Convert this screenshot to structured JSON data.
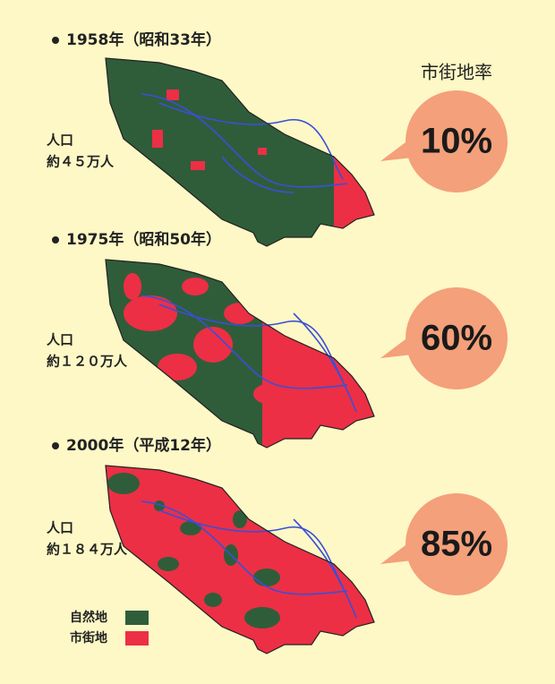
{
  "title": "市街地率",
  "panels": [
    {
      "year": "1958年（昭和33年）",
      "population_label": "人口",
      "population": "約４５万人",
      "rate": "10%"
    },
    {
      "year": "1975年（昭和50年）",
      "population_label": "人口",
      "population": "約１２０万人",
      "rate": "60%"
    },
    {
      "year": "2000年（平成12年）",
      "population_label": "人口",
      "population": "約１８４万人",
      "rate": "85%"
    }
  ],
  "legend": [
    {
      "label": "自然地",
      "color": "#2f5d3a"
    },
    {
      "label": "市街地",
      "color": "#ec2f45"
    }
  ]
}
